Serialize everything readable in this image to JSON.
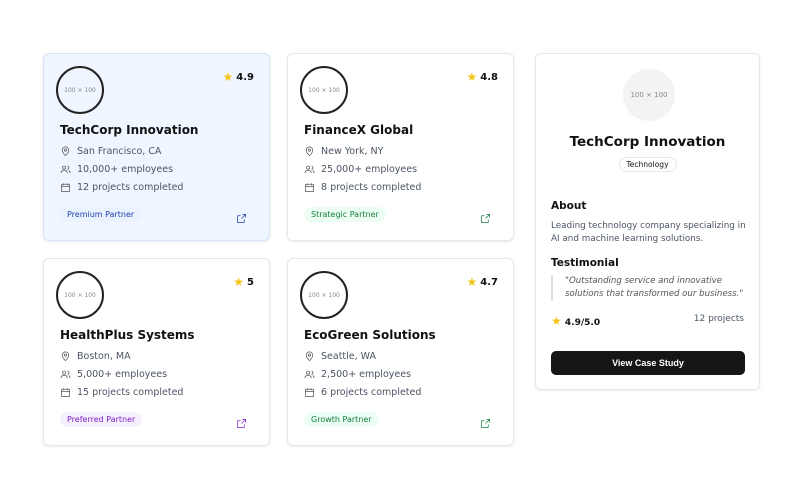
{
  "partners": [
    {
      "name": "TechCorp Innovation",
      "rating": "4.9",
      "location": "San Francisco, CA",
      "employees": "10,000+ employees",
      "projects": "12 projects completed",
      "badge": "Premium Partner",
      "badge_color": "#1e40af",
      "badge_bg": "#eaf2fd",
      "image": "100 × 100",
      "selected": true
    },
    {
      "name": "FinanceX Global",
      "rating": "4.8",
      "location": "New York, NY",
      "employees": "25,000+ employees",
      "projects": "8 projects completed",
      "badge": "Strategic Partner",
      "badge_color": "#15803d",
      "badge_bg": "#ecfdf3",
      "image": "100 × 100"
    },
    {
      "name": "HealthPlus Systems",
      "rating": "5",
      "location": "Boston, MA",
      "employees": "5,000+ employees",
      "projects": "15 projects completed",
      "badge": "Preferred Partner",
      "badge_color": "#7e22ce",
      "badge_bg": "#f6effc",
      "image": "100 × 100"
    },
    {
      "name": "EcoGreen Solutions",
      "rating": "4.7",
      "location": "Seattle, WA",
      "employees": "2,500+ employees",
      "projects": "6 projects completed",
      "badge": "Growth Partner",
      "badge_color": "#15803d",
      "badge_bg": "#ecfdf3",
      "image": "100 × 100"
    }
  ],
  "detail": {
    "image": "100 × 100",
    "name": "TechCorp Innovation",
    "category": "Technology",
    "about_heading": "About",
    "about": "Leading technology company specializing in AI and machine learning solutions.",
    "testimonial_heading": "Testimonial",
    "testimonial": "\"Outstanding service and innovative solutions that transformed our business.\"",
    "rating": "4.9/5.0",
    "projects": "12 projects",
    "button": "View Case Study"
  }
}
